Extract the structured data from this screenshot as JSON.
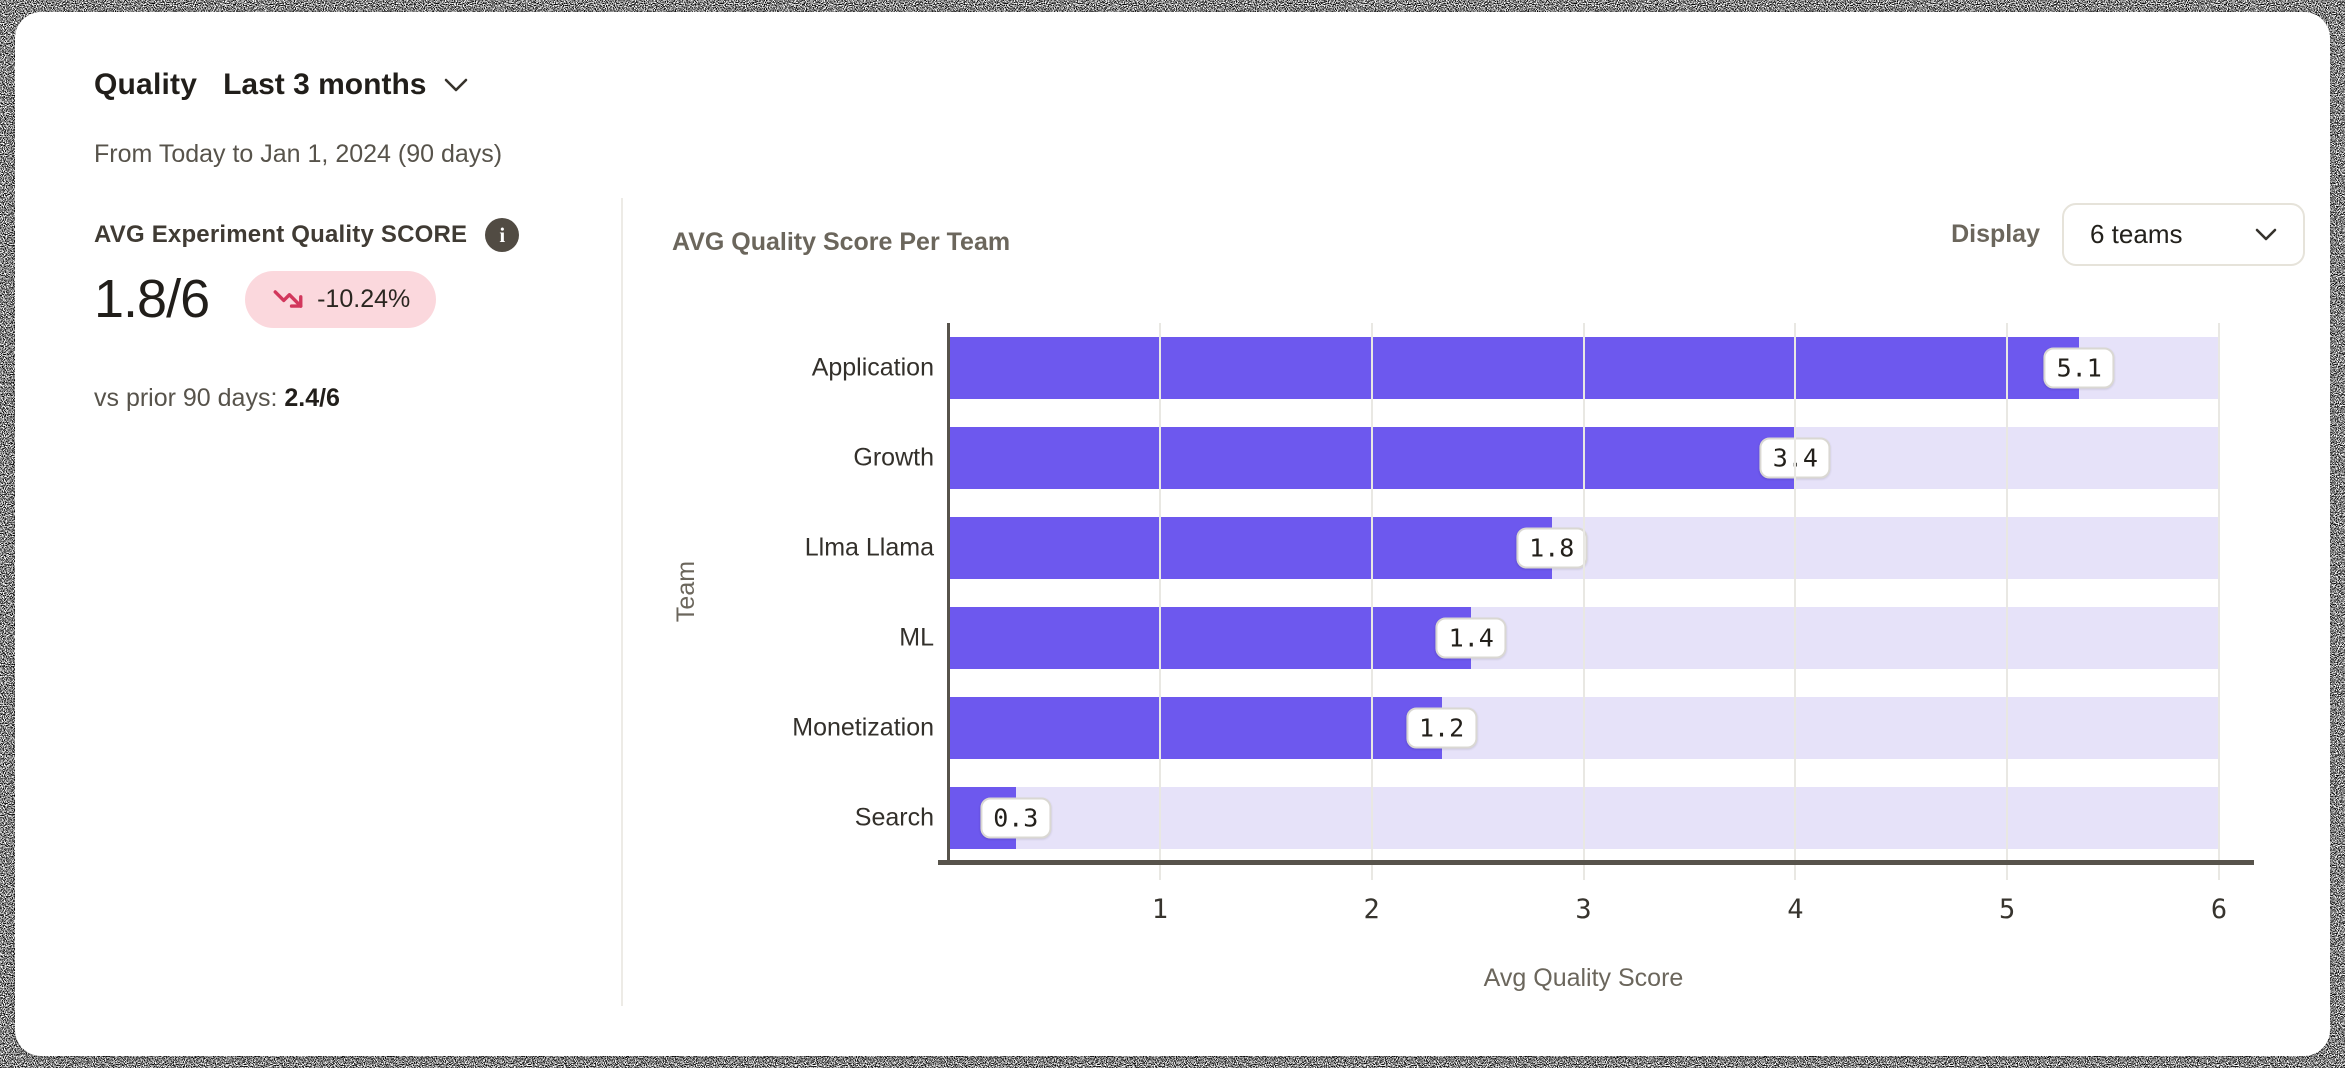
{
  "header": {
    "title": "Quality",
    "range_label": "Last 3 months",
    "subtitle": "From Today to Jan 1, 2024  (90 days)"
  },
  "metric": {
    "label": "AVG Experiment Quality SCORE",
    "info_icon": "info-icon",
    "value": "1.8/6",
    "delta": "-10.24%",
    "delta_trend": "down",
    "delta_icon": "trending-down-icon",
    "comparison_prefix": "vs prior 90 days: ",
    "comparison_value": "2.4/6"
  },
  "chart_panel": {
    "title": "AVG Quality Score Per Team",
    "display_label": "Display",
    "display_value": "6 teams",
    "display_chevron_icon": "chevron-down-icon"
  },
  "chart_data": {
    "type": "bar",
    "orientation": "horizontal",
    "title": "AVG Quality Score Per Team",
    "categories": [
      "Application",
      "Growth",
      "Llma Llama",
      "ML",
      "Monetization",
      "Search"
    ],
    "values": [
      5.1,
      3.4,
      1.8,
      1.4,
      1.2,
      0.3
    ],
    "bar_visual_lengths": [
      5.34,
      4.0,
      2.85,
      2.47,
      2.33,
      0.32
    ],
    "xlabel": "Avg Quality Score",
    "ylabel": "Team",
    "xlim": [
      0,
      6
    ],
    "xticks": [
      "1",
      "2",
      "3",
      "4",
      "5",
      "6"
    ],
    "grid": true,
    "legend": "none"
  },
  "colors": {
    "bar": "#6d58ee",
    "bar_track": "#e6e2f9",
    "badge_bg": "#fbd8dd",
    "badge_arrow": "#d2375c",
    "axis": "#57534b",
    "gridline": "#e9e8e3",
    "text_dark": "#211e1a",
    "text_gray": "#57534b",
    "chart_gray": "#6b665c"
  }
}
